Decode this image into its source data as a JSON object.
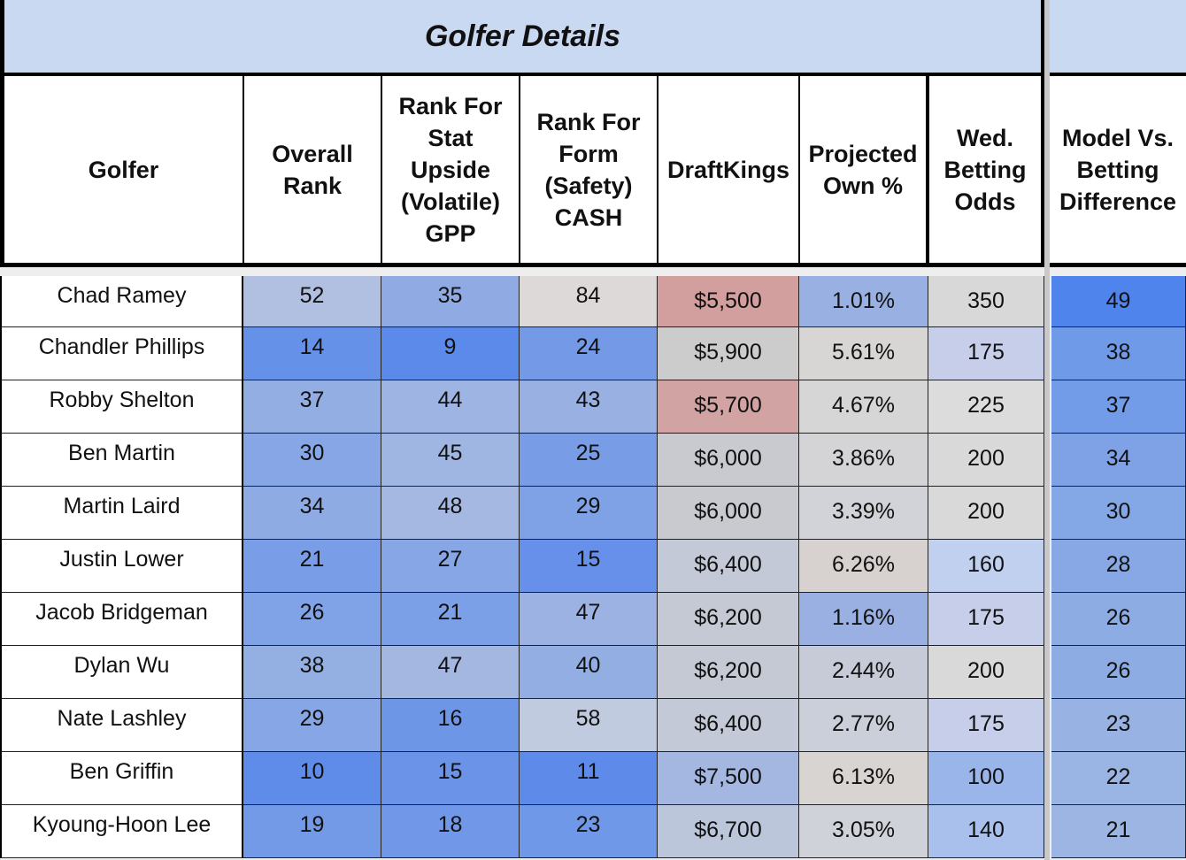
{
  "title": "Golfer Details",
  "columns": [
    {
      "key": "golfer",
      "label": "Golfer"
    },
    {
      "key": "overall_rank",
      "label": "Overall Rank"
    },
    {
      "key": "rank_stat",
      "label": "Rank For Stat Upside (Volatile) GPP"
    },
    {
      "key": "rank_form",
      "label": "Rank For Form (Safety) CASH"
    },
    {
      "key": "draftkings",
      "label": "DraftKings"
    },
    {
      "key": "proj_own",
      "label": "Projected Own %"
    },
    {
      "key": "odds",
      "label": "Wed. Betting Odds"
    },
    {
      "key": "diff",
      "label": "Model Vs. Betting Difference"
    }
  ],
  "rows": [
    {
      "golfer": "Chad Ramey",
      "overall_rank": "52",
      "rank_stat": "35",
      "rank_form": "84",
      "draftkings": "$5,500",
      "proj_own": "1.01%",
      "odds": "350",
      "diff": "49"
    },
    {
      "golfer": "Chandler Phillips",
      "overall_rank": "14",
      "rank_stat": "9",
      "rank_form": "24",
      "draftkings": "$5,900",
      "proj_own": "5.61%",
      "odds": "175",
      "diff": "38"
    },
    {
      "golfer": "Robby Shelton",
      "overall_rank": "37",
      "rank_stat": "44",
      "rank_form": "43",
      "draftkings": "$5,700",
      "proj_own": "4.67%",
      "odds": "225",
      "diff": "37"
    },
    {
      "golfer": "Ben Martin",
      "overall_rank": "30",
      "rank_stat": "45",
      "rank_form": "25",
      "draftkings": "$6,000",
      "proj_own": "3.86%",
      "odds": "200",
      "diff": "34"
    },
    {
      "golfer": "Martin Laird",
      "overall_rank": "34",
      "rank_stat": "48",
      "rank_form": "29",
      "draftkings": "$6,000",
      "proj_own": "3.39%",
      "odds": "200",
      "diff": "30"
    },
    {
      "golfer": "Justin Lower",
      "overall_rank": "21",
      "rank_stat": "27",
      "rank_form": "15",
      "draftkings": "$6,400",
      "proj_own": "6.26%",
      "odds": "160",
      "diff": "28"
    },
    {
      "golfer": "Jacob Bridgeman",
      "overall_rank": "26",
      "rank_stat": "21",
      "rank_form": "47",
      "draftkings": "$6,200",
      "proj_own": "1.16%",
      "odds": "175",
      "diff": "26"
    },
    {
      "golfer": "Dylan Wu",
      "overall_rank": "38",
      "rank_stat": "47",
      "rank_form": "40",
      "draftkings": "$6,200",
      "proj_own": "2.44%",
      "odds": "200",
      "diff": "26"
    },
    {
      "golfer": "Nate Lashley",
      "overall_rank": "29",
      "rank_stat": "16",
      "rank_form": "58",
      "draftkings": "$6,400",
      "proj_own": "2.77%",
      "odds": "175",
      "diff": "23"
    },
    {
      "golfer": "Ben Griffin",
      "overall_rank": "10",
      "rank_stat": "15",
      "rank_form": "11",
      "draftkings": "$7,500",
      "proj_own": "6.13%",
      "odds": "100",
      "diff": "22"
    },
    {
      "golfer": "Kyoung-Hoon Lee",
      "overall_rank": "19",
      "rank_stat": "18",
      "rank_form": "23",
      "draftkings": "$6,700",
      "proj_own": "3.05%",
      "odds": "140",
      "diff": "21"
    }
  ],
  "colors": {
    "overall_rank": [
      "#b1c0e0",
      "#6691e8",
      "#93aee2",
      "#86a6e6",
      "#8fabe3",
      "#799de6",
      "#80a2e6",
      "#94afe2",
      "#86a6e6",
      "#5f8ce9",
      "#729ae7"
    ],
    "rank_stat": [
      "#90abe3",
      "#5c8aea",
      "#9eb4e2",
      "#a0b6e2",
      "#a5b8e1",
      "#86a6e6",
      "#7ca0e7",
      "#a3b7e1",
      "#6e96e7",
      "#6b94e8",
      "#7198e8"
    ],
    "rank_form": [
      "#ddd9d8",
      "#7399e7",
      "#98b0e2",
      "#789de6",
      "#7fa1e6",
      "#6690e9",
      "#9cb2e2",
      "#93aee2",
      "#c0cbe0",
      "#5e8bea",
      "#7098e8"
    ],
    "draftkings": [
      "#d39e9e",
      "#cccccd",
      "#d1a3a3",
      "#c9cad0",
      "#c9cad0",
      "#c3c9d6",
      "#c5c9d4",
      "#c5c9d4",
      "#c3c9d6",
      "#a3b7e1",
      "#bcc6da"
    ],
    "proj_own": [
      "#98b0e2",
      "#d8d6d5",
      "#d7d6d6",
      "#d4d4d7",
      "#d2d3d8",
      "#d7d2d0",
      "#9ab0e2",
      "#c6cbd7",
      "#cacfd9",
      "#d8d4d2",
      "#d0d2d9"
    ],
    "odds": [
      "#d8d8d8",
      "#c6ceea",
      "#dcdcdc",
      "#d9d9d9",
      "#d9d9d9",
      "#c0d0ee",
      "#c6ceea",
      "#d9d9d9",
      "#c6ceea",
      "#9ab5ea",
      "#aac0ec"
    ],
    "diff": [
      "#4f84ec",
      "#6f9ae8",
      "#729ce8",
      "#7fa2e6",
      "#84a7e5",
      "#88a8e5",
      "#8eace4",
      "#8eace4",
      "#97b2e3",
      "#9ab4e3",
      "#9cb5e3"
    ]
  }
}
